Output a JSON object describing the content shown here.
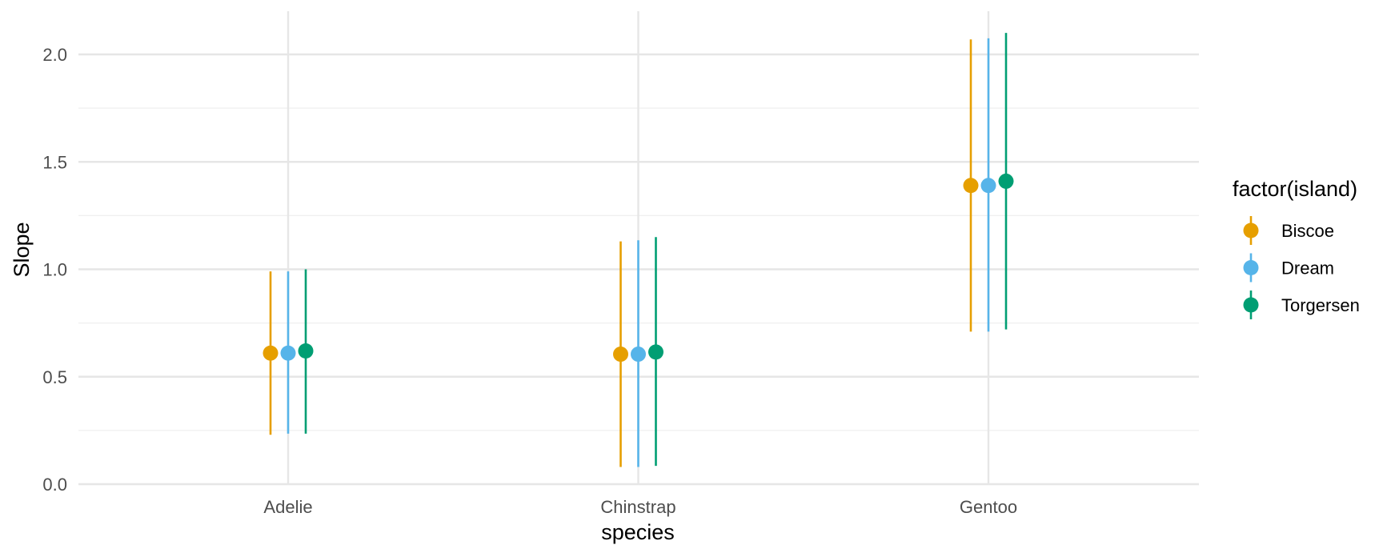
{
  "chart_data": {
    "type": "pointrange",
    "title": "",
    "xlabel": "species",
    "ylabel": "Slope",
    "categories": [
      "Adelie",
      "Chinstrap",
      "Gentoo"
    ],
    "ylim": [
      0,
      2.2
    ],
    "yticks": [
      0.0,
      0.5,
      1.0,
      1.5,
      2.0
    ],
    "ytick_labels": [
      "0.0",
      "0.5",
      "1.0",
      "1.5",
      "2.0"
    ],
    "grid": true,
    "legend": {
      "title": "factor(island)",
      "position": "right"
    },
    "series": [
      {
        "name": "Biscoe",
        "color": "#E69F00",
        "estimate": [
          0.61,
          0.605,
          1.39
        ],
        "lower": [
          0.23,
          0.08,
          0.71
        ],
        "upper": [
          0.99,
          1.13,
          2.07
        ]
      },
      {
        "name": "Dream",
        "color": "#56B4E9",
        "estimate": [
          0.61,
          0.605,
          1.39
        ],
        "lower": [
          0.235,
          0.08,
          0.71
        ],
        "upper": [
          0.99,
          1.135,
          2.075
        ]
      },
      {
        "name": "Torgersen",
        "color": "#009E73",
        "estimate": [
          0.62,
          0.615,
          1.41
        ],
        "lower": [
          0.235,
          0.085,
          0.72
        ],
        "upper": [
          1.0,
          1.15,
          2.1
        ]
      }
    ]
  }
}
